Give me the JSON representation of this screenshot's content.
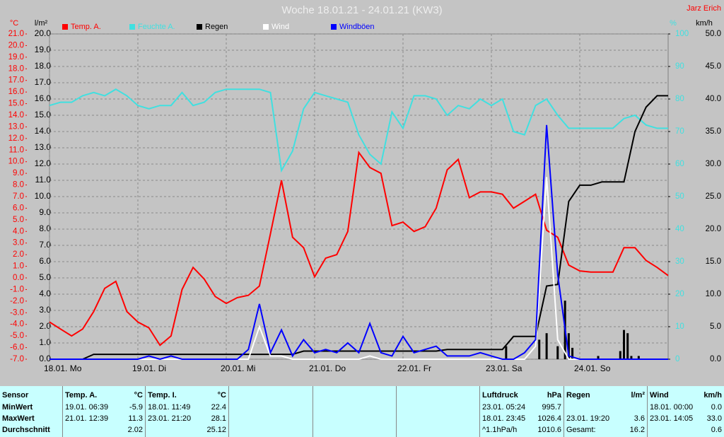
{
  "chart_data": {
    "type": "line",
    "title": "Woche 18.01.21 - 24.01.21 (KW3)",
    "author": "Jarz Erich",
    "ylabel": "°C",
    "y2label": "l/m²",
    "y3label": "%",
    "y4label": "km/h",
    "ycolor": "#ff0000",
    "y2color": "#000000",
    "y3color": "#40e0e0",
    "y4color": "#000000",
    "grid": true,
    "x": [
      0,
      3,
      6,
      9,
      12,
      15,
      18,
      21,
      24,
      27,
      30,
      33,
      36,
      39,
      42,
      45,
      48,
      51,
      54,
      57,
      60,
      63,
      66,
      69,
      72,
      75,
      78,
      81,
      84,
      87,
      90,
      93,
      96,
      99,
      102,
      105,
      108,
      111,
      114,
      117,
      120,
      123,
      126,
      129,
      132,
      135,
      138,
      141,
      144,
      147,
      150,
      153,
      156,
      159,
      162,
      165,
      168
    ],
    "xlim": [
      0,
      168
    ],
    "xticks": [
      {
        "value": 0,
        "label": "18.01. Mo"
      },
      {
        "value": 24,
        "label": "19.01. Di"
      },
      {
        "value": 48,
        "label": "20.01. Mi"
      },
      {
        "value": 72,
        "label": "21.01. Do"
      },
      {
        "value": 96,
        "label": "22.01. Fr"
      },
      {
        "value": 120,
        "label": "23.01. Sa"
      },
      {
        "value": 144,
        "label": "24.01. So"
      }
    ],
    "ylim": [
      -7,
      21
    ],
    "yticks": [
      {
        "value": 21,
        "label": "21.0"
      },
      {
        "value": 20,
        "label": "20.0"
      },
      {
        "value": 19,
        "label": "19.0"
      },
      {
        "value": 18,
        "label": "18.0"
      },
      {
        "value": 17,
        "label": "17.0"
      },
      {
        "value": 16,
        "label": "16.0"
      },
      {
        "value": 15,
        "label": "15.0"
      },
      {
        "value": 14,
        "label": "14.0"
      },
      {
        "value": 13,
        "label": "13.0"
      },
      {
        "value": 12,
        "label": "12.0"
      },
      {
        "value": 11,
        "label": "11.0"
      },
      {
        "value": 10,
        "label": "10.0"
      },
      {
        "value": 9,
        "label": "9.0"
      },
      {
        "value": 8,
        "label": "8.0"
      },
      {
        "value": 7,
        "label": "7.0"
      },
      {
        "value": 6,
        "label": "6.0"
      },
      {
        "value": 5,
        "label": "5.0"
      },
      {
        "value": 4,
        "label": "4.0"
      },
      {
        "value": 3,
        "label": "3.0"
      },
      {
        "value": 2,
        "label": "2.0"
      },
      {
        "value": 1,
        "label": "1.0"
      },
      {
        "value": 0,
        "label": "0.0"
      },
      {
        "value": -1,
        "label": "-1.0"
      },
      {
        "value": -2,
        "label": "-2.0"
      },
      {
        "value": -3,
        "label": "-3.0"
      },
      {
        "value": -4,
        "label": "-4.0"
      },
      {
        "value": -5,
        "label": "-5.0"
      },
      {
        "value": -6,
        "label": "-6.0"
      },
      {
        "value": -7,
        "label": "-7.0"
      }
    ],
    "y2lim": [
      0,
      20
    ],
    "y2ticks": [
      {
        "value": 20,
        "label": "20.0"
      },
      {
        "value": 19,
        "label": "19.0"
      },
      {
        "value": 18,
        "label": "18.0"
      },
      {
        "value": 17,
        "label": "17.0"
      },
      {
        "value": 16,
        "label": "16.0"
      },
      {
        "value": 15,
        "label": "15.0"
      },
      {
        "value": 14,
        "label": "14.0"
      },
      {
        "value": 13,
        "label": "13.0"
      },
      {
        "value": 12,
        "label": "12.0"
      },
      {
        "value": 11,
        "label": "11.0"
      },
      {
        "value": 10,
        "label": "10.0"
      },
      {
        "value": 9,
        "label": "9.0"
      },
      {
        "value": 8,
        "label": "8.0"
      },
      {
        "value": 7,
        "label": "7.0"
      },
      {
        "value": 6,
        "label": "6.0"
      },
      {
        "value": 5,
        "label": "5.0"
      },
      {
        "value": 4,
        "label": "4.0"
      },
      {
        "value": 3,
        "label": "3.0"
      },
      {
        "value": 2,
        "label": "2.0"
      },
      {
        "value": 1,
        "label": "1.0"
      },
      {
        "value": 0,
        "label": "0.0"
      }
    ],
    "y3lim": [
      0,
      100
    ],
    "y3ticks": [
      100,
      90,
      80,
      70,
      60,
      50,
      40,
      30,
      20,
      10,
      0
    ],
    "y4lim": [
      0,
      50
    ],
    "y4ticks": [
      {
        "value": 50,
        "label": "50.0"
      },
      {
        "value": 45,
        "label": "45.0"
      },
      {
        "value": 40,
        "label": "40.0"
      },
      {
        "value": 35,
        "label": "35.0"
      },
      {
        "value": 30,
        "label": "30.0"
      },
      {
        "value": 25,
        "label": "25.0"
      },
      {
        "value": 20,
        "label": "20.0"
      },
      {
        "value": 15,
        "label": "15.0"
      },
      {
        "value": 10,
        "label": "10.0"
      },
      {
        "value": 5,
        "label": "5.0"
      },
      {
        "value": 0,
        "label": "0.0"
      }
    ],
    "series": [
      {
        "name": "Temp. A.",
        "color": "#ff0000",
        "axis": "y",
        "values": [
          -3.8,
          -4.4,
          -5.0,
          -4.4,
          -2.9,
          -0.9,
          -0.3,
          -2.9,
          -3.8,
          -4.3,
          -5.8,
          -5.0,
          -1.0,
          0.9,
          -0.1,
          -1.6,
          -2.2,
          -1.7,
          -1.5,
          -0.7,
          3.8,
          8.4,
          3.5,
          2.6,
          0.1,
          1.7,
          2.0,
          4.0,
          10.8,
          9.5,
          9.0,
          4.5,
          4.8,
          4.0,
          4.4,
          6.0,
          9.3,
          10.2,
          6.9,
          7.4,
          7.4,
          7.2,
          6.0,
          6.6,
          7.2,
          4.1,
          3.5,
          1.1,
          0.6,
          0.5,
          0.5,
          0.5,
          2.6,
          2.6,
          1.5,
          0.9,
          0.2
        ]
      },
      {
        "name": "Feuchte A.",
        "color": "#40e0e0",
        "axis": "y3",
        "values": [
          78,
          79,
          79,
          81,
          82,
          81,
          83,
          81,
          78,
          77,
          78,
          78,
          82,
          78,
          79,
          82,
          83,
          83,
          83,
          83,
          82,
          58,
          64,
          77,
          82,
          81,
          80,
          79,
          69,
          63,
          60,
          76,
          71,
          81,
          81,
          80,
          75,
          78,
          77,
          80,
          78,
          80,
          70,
          69,
          78,
          80,
          75,
          71,
          71,
          71,
          71,
          71,
          74,
          75,
          72,
          71,
          71
        ]
      },
      {
        "name": "Regen",
        "color": "#000000",
        "axis": "y2",
        "values": [
          0,
          0,
          0,
          0,
          0.3,
          0.3,
          0.3,
          0.3,
          0.3,
          0.3,
          0.3,
          0.3,
          0.3,
          0.3,
          0.3,
          0.3,
          0.3,
          0.3,
          0.3,
          0.3,
          0.3,
          0.3,
          0.3,
          0.5,
          0.5,
          0.5,
          0.5,
          0.5,
          0.5,
          0.5,
          0.5,
          0.5,
          0.5,
          0.5,
          0.5,
          0.5,
          0.6,
          0.6,
          0.6,
          0.6,
          0.6,
          0.6,
          1.4,
          1.4,
          1.4,
          4.5,
          4.6,
          9.7,
          10.7,
          10.7,
          10.9,
          10.9,
          10.9,
          14.0,
          15.5,
          16.2,
          16.2
        ],
        "bar_x": [
          124,
          133,
          135,
          138,
          140,
          141,
          142,
          149,
          155,
          156,
          157,
          158,
          160
        ],
        "bar_values": [
          0.8,
          1.2,
          1.6,
          0.8,
          3.6,
          1.6,
          0.7,
          0.2,
          0.5,
          1.8,
          1.6,
          0.2,
          0.2
        ]
      },
      {
        "name": "Wind",
        "color": "#ffffff",
        "axis": "y4",
        "values": [
          0,
          0,
          0,
          0,
          0,
          0,
          0,
          0,
          0,
          0,
          0,
          0,
          0,
          0,
          0,
          0,
          0,
          0,
          0,
          5.0,
          0.5,
          0.5,
          0,
          0,
          0,
          0,
          0,
          0,
          0,
          0.5,
          0,
          0,
          0,
          0,
          0,
          0,
          0,
          0,
          0,
          0,
          0,
          0,
          0,
          0,
          2.0,
          28.0,
          3.0,
          0,
          0,
          0,
          0,
          0,
          0,
          0,
          0,
          0,
          0
        ]
      },
      {
        "name": "Windböen",
        "color": "#0000ff",
        "axis": "y4",
        "values": [
          0,
          0,
          0,
          0,
          0,
          0,
          0,
          0,
          0,
          0.5,
          0,
          0.5,
          0,
          0,
          0,
          0,
          0,
          0,
          1.5,
          8.5,
          1.0,
          4.5,
          0.5,
          3.0,
          1.0,
          1.5,
          1.0,
          2.5,
          1.0,
          5.5,
          1.0,
          0.5,
          3.5,
          1.0,
          1.5,
          2.0,
          0.5,
          0.5,
          0.5,
          1.0,
          0.5,
          0,
          0,
          1.0,
          3.0,
          36.0,
          13.0,
          0.5,
          0,
          0,
          0,
          0,
          0,
          0,
          0,
          0,
          0
        ]
      }
    ]
  },
  "table": {
    "sensor_label": "Sensor",
    "row_labels": [
      "MinWert",
      "MaxWert",
      "Durchschnitt"
    ],
    "groups": [
      {
        "name": "Temp. A.",
        "unit": "°C",
        "cells": [
          [
            "19.01. 06:39",
            "-5.9"
          ],
          [
            "21.01. 12:39",
            "11.3"
          ],
          [
            null,
            "2.02"
          ]
        ]
      },
      {
        "name": "Temp. I.",
        "unit": "°C",
        "cells": [
          [
            "18.01. 11:49",
            "22.4"
          ],
          [
            "23.01. 21:20",
            "28.1"
          ],
          [
            null,
            "25.12"
          ]
        ]
      },
      {
        "name": "Luftdruck",
        "unit": "hPa",
        "cells": [
          [
            "23.01. 05:24",
            "995.7"
          ],
          [
            "18.01. 23:45",
            "1026.4"
          ],
          [
            "^1.1hPa/h",
            "1010.6"
          ]
        ]
      },
      {
        "name": "Regen",
        "unit": "l/m²",
        "cells": [
          [
            null,
            null
          ],
          [
            "23.01. 19:20",
            "3.6"
          ],
          [
            "Gesamt:",
            "16.2"
          ]
        ]
      },
      {
        "name": "Wind",
        "unit": "km/h",
        "cells": [
          [
            "18.01. 00:00",
            "0.0"
          ],
          [
            "23.01. 14:05",
            "33.0"
          ],
          [
            null,
            "0.6"
          ]
        ]
      }
    ]
  }
}
